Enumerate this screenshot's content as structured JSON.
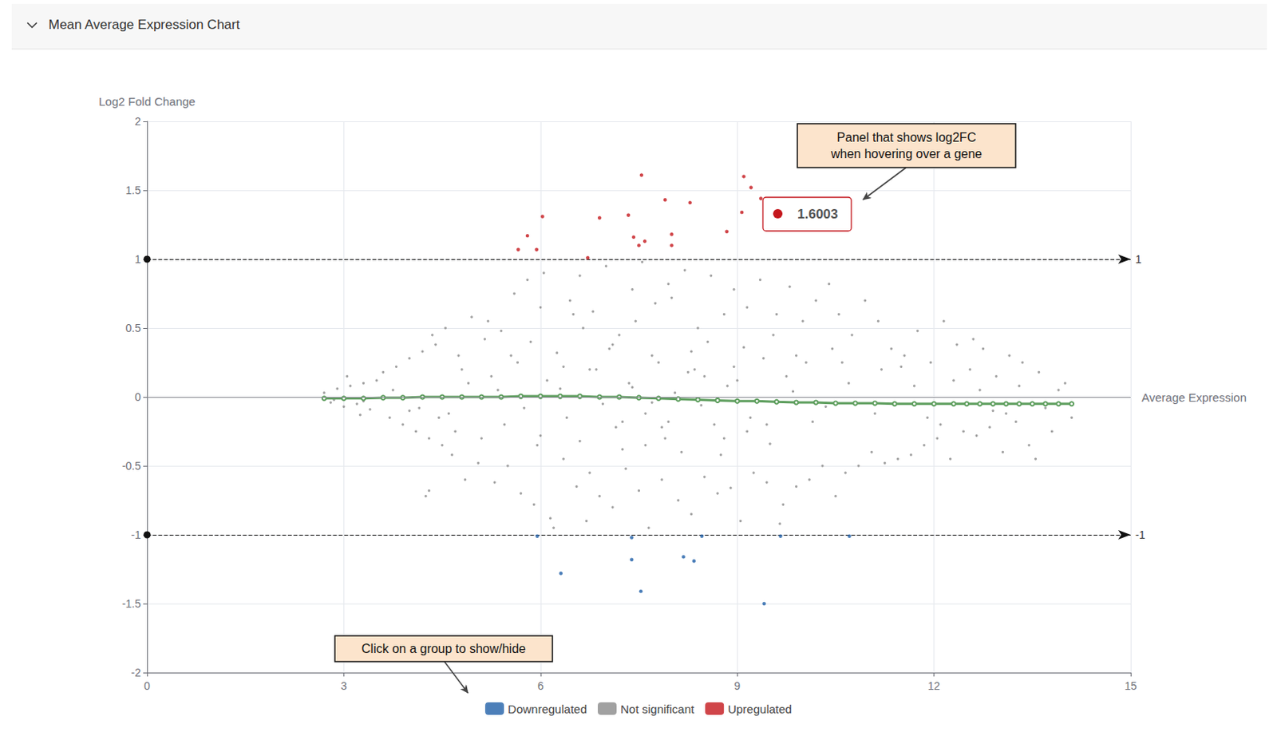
{
  "chart_data": {
    "type": "scatter",
    "title": "Mean Average Expression Chart",
    "y_label": "Log2 Fold Change",
    "x_label": "Average Expression",
    "xlim": [
      0,
      15
    ],
    "xticks": [
      0,
      3,
      6,
      9,
      12,
      15
    ],
    "ylim": [
      -2,
      2
    ],
    "yticks": [
      -2,
      -1.5,
      -1,
      -0.5,
      0,
      0.5,
      1,
      1.5,
      2
    ],
    "grid": true,
    "legend": "bottom",
    "thresholds": [
      1,
      -1
    ],
    "hover_value": 1.6003,
    "annotations": [
      {
        "text": [
          "Panel that shows log2FC",
          "when hovering over a gene"
        ]
      },
      {
        "text": [
          "Click on a group to show/hide"
        ]
      }
    ],
    "series": [
      {
        "name": "Downregulated",
        "color": "#1f5fa8",
        "marker": "circle",
        "x": [
          5.95,
          7.39,
          8.46,
          9.66,
          10.71,
          7.39,
          8.18,
          8.34,
          6.31,
          7.53,
          9.41
        ],
        "values": [
          -1.01,
          -1.02,
          -1.01,
          -1.01,
          -1.01,
          -1.18,
          -1.16,
          -1.19,
          -1.28,
          -1.41,
          -1.5
        ]
      },
      {
        "name": "Not significant",
        "color": "#8a8a8a",
        "marker": "circle",
        "x": [
          2.7,
          2.8,
          2.9,
          3.0,
          3.1,
          3.2,
          3.3,
          3.4,
          3.5,
          2.85,
          3.05,
          3.25,
          3.6,
          3.7,
          3.8,
          3.9,
          4.0,
          4.1,
          4.2,
          4.3,
          4.4,
          4.5,
          3.75,
          4.15,
          4.25,
          4.35,
          4.55,
          4.65,
          4.75,
          4.85,
          4.95,
          5.05,
          5.15,
          4.3,
          4.6,
          4.9,
          5.2,
          5.3,
          5.4,
          5.5,
          5.6,
          5.7,
          5.8,
          5.9,
          6.0,
          5.25,
          5.45,
          5.65,
          5.85,
          5.95,
          6.05,
          6.15,
          6.25,
          6.35,
          6.45,
          6.55,
          6.65,
          6.75,
          6.1,
          6.4,
          6.6,
          6.7,
          6.8,
          6.9,
          7.0,
          7.1,
          7.2,
          7.3,
          7.4,
          7.5,
          6.85,
          7.15,
          7.05,
          7.25,
          7.45,
          7.55,
          7.65,
          7.75,
          7.85,
          7.95,
          7.35,
          7.6,
          7.8,
          7.9,
          8.0,
          8.1,
          8.2,
          8.3,
          8.4,
          8.5,
          8.6,
          8.7,
          8.8,
          8.9,
          8.25,
          8.65,
          8.55,
          8.75,
          8.95,
          9.05,
          9.15,
          9.25,
          9.35,
          9.45,
          9.55,
          9.0,
          9.2,
          9.4,
          9.6,
          9.7,
          9.8,
          9.9,
          10.0,
          10.1,
          10.2,
          10.3,
          10.4,
          10.5,
          9.75,
          10.15,
          10.55,
          10.65,
          10.75,
          10.85,
          10.95,
          11.05,
          11.15,
          11.25,
          11.35,
          11.45,
          10.7,
          11.1,
          11.55,
          11.65,
          11.75,
          11.85,
          11.95,
          12.05,
          12.15,
          12.25,
          12.35,
          12.45,
          11.7,
          12.1,
          12.55,
          12.65,
          12.75,
          12.85,
          12.95,
          13.05,
          13.15,
          13.25,
          13.35,
          13.45,
          12.7,
          13.1,
          13.6,
          13.8,
          14.0,
          14.1,
          13.55,
          13.9,
          6.2,
          6.5,
          7.7,
          8.15,
          9.65,
          10.45,
          5.35,
          5.75,
          6.3,
          6.95,
          7.4,
          7.7,
          8.05,
          8.45,
          8.85,
          9.3,
          9.85,
          10.35,
          5.55,
          6.0,
          6.6,
          7.1,
          7.6,
          8.3,
          8.8,
          9.1,
          9.5,
          10.6,
          11.2,
          11.9,
          4.45,
          4.8,
          5.1,
          12.3,
          12.9,
          13.3,
          4.0,
          4.7,
          11.5,
          12.6,
          13.7,
          3.3,
          6.75,
          7.25,
          7.85,
          8.35,
          8.95,
          9.45,
          10.05,
          6.35,
          7.95,
          8.5,
          9.15,
          9.9
        ],
        "values": [
          0.03,
          -0.04,
          0.06,
          -0.07,
          0.08,
          -0.05,
          0.1,
          -0.09,
          0.12,
          -0.02,
          0.15,
          -0.13,
          0.18,
          -0.15,
          0.22,
          -0.2,
          0.28,
          -0.25,
          0.33,
          -0.3,
          0.38,
          -0.35,
          0.05,
          -0.08,
          -0.72,
          0.45,
          0.5,
          -0.42,
          0.3,
          -0.6,
          0.58,
          -0.48,
          0.42,
          -0.68,
          -0.12,
          0.1,
          0.55,
          -0.62,
          0.48,
          -0.5,
          0.75,
          -0.7,
          0.85,
          -0.78,
          0.65,
          0.15,
          -0.2,
          0.25,
          0.4,
          -0.35,
          0.9,
          -0.88,
          0.32,
          -0.45,
          0.7,
          -0.65,
          0.5,
          -0.55,
          0.12,
          -0.15,
          0.88,
          -0.9,
          0.62,
          -0.72,
          0.95,
          -0.8,
          0.45,
          -0.52,
          0.78,
          -0.68,
          0.2,
          -0.22,
          0.35,
          -0.38,
          0.55,
          0.98,
          -0.95,
          0.68,
          -0.6,
          0.82,
          0.1,
          -0.12,
          0.25,
          -0.3,
          0.72,
          -0.75,
          0.92,
          -0.85,
          0.5,
          -0.58,
          0.88,
          -0.7,
          0.6,
          -0.66,
          0.18,
          -0.2,
          0.4,
          -0.42,
          0.78,
          -0.9,
          0.65,
          -0.55,
          0.85,
          -0.62,
          0.45,
          0.12,
          -0.15,
          0.28,
          0.6,
          -0.78,
          0.8,
          -0.65,
          0.55,
          -0.6,
          0.7,
          -0.5,
          0.82,
          -0.72,
          0.15,
          -0.18,
          0.6,
          -0.55,
          0.45,
          -0.5,
          0.7,
          -0.4,
          0.55,
          -0.48,
          0.35,
          -0.45,
          0.1,
          -0.12,
          0.3,
          -0.42,
          0.48,
          -0.35,
          0.25,
          -0.3,
          0.55,
          -0.45,
          0.38,
          -0.25,
          0.08,
          -0.2,
          0.2,
          -0.28,
          0.35,
          -0.22,
          0.15,
          -0.4,
          0.3,
          -0.18,
          0.25,
          -0.35,
          0.05,
          -0.12,
          0.18,
          -0.25,
          0.1,
          -0.15,
          -0.45,
          0.05,
          -0.95,
          0.6,
          0.3,
          -0.4,
          -0.92,
          0.35,
          0.05,
          -0.08,
          0.06,
          -0.05,
          0.07,
          -0.04,
          0.03,
          -0.06,
          0.08,
          -0.03,
          0.04,
          -0.07,
          0.3,
          -0.28,
          -0.32,
          0.38,
          -0.35,
          0.33,
          -0.3,
          0.36,
          -0.34,
          0.25,
          0.2,
          -0.15,
          -0.15,
          0.2,
          -0.3,
          0.12,
          -0.1,
          0.08,
          -0.1,
          -0.25,
          0.22,
          0.42,
          -0.08,
          -0.03,
          0.2,
          -0.18,
          -0.22,
          0.2,
          0.22,
          -0.2,
          0.25,
          0.22,
          -0.18,
          0.15,
          -0.25,
          0.3
        ]
      },
      {
        "name": "Upregulated",
        "color": "#c4161c",
        "marker": "circle",
        "x": [
          7.54,
          9.1,
          9.21,
          9.36,
          7.9,
          8.28,
          6.03,
          6.9,
          7.34,
          9.07,
          7.42,
          7.5,
          7.59,
          8.0,
          8.0,
          5.8,
          5.66,
          5.94,
          8.84,
          6.72
        ],
        "values": [
          1.61,
          1.6,
          1.52,
          1.44,
          1.43,
          1.41,
          1.31,
          1.3,
          1.32,
          1.34,
          1.16,
          1.1,
          1.13,
          1.18,
          1.1,
          1.17,
          1.07,
          1.07,
          1.2,
          1.01
        ]
      },
      {
        "type": "line",
        "color": "#5f9f5f",
        "marker": "circle_open",
        "line_style": "solid",
        "x": [
          2.7,
          3.0,
          3.3,
          3.6,
          3.9,
          4.2,
          4.5,
          4.8,
          5.1,
          5.4,
          5.7,
          6.0,
          6.3,
          6.6,
          6.9,
          7.2,
          7.5,
          7.8,
          8.1,
          8.4,
          8.7,
          9.0,
          9.3,
          9.6,
          9.9,
          10.2,
          10.5,
          10.8,
          11.1,
          11.4,
          11.7,
          12.0,
          12.3,
          12.5,
          12.7,
          12.9,
          13.1,
          13.3,
          13.5,
          13.7,
          13.9,
          14.1
        ],
        "values": [
          -0.01,
          -0.01,
          -0.01,
          -0.005,
          -0.005,
          0,
          0,
          0,
          0,
          0,
          0.005,
          0.005,
          0.005,
          0.005,
          0,
          0,
          -0.005,
          -0.01,
          -0.015,
          -0.02,
          -0.025,
          -0.03,
          -0.03,
          -0.035,
          -0.04,
          -0.04,
          -0.045,
          -0.045,
          -0.045,
          -0.05,
          -0.05,
          -0.05,
          -0.05,
          -0.05,
          -0.05,
          -0.05,
          -0.05,
          -0.05,
          -0.05,
          -0.05,
          -0.05,
          -0.05
        ]
      }
    ]
  }
}
